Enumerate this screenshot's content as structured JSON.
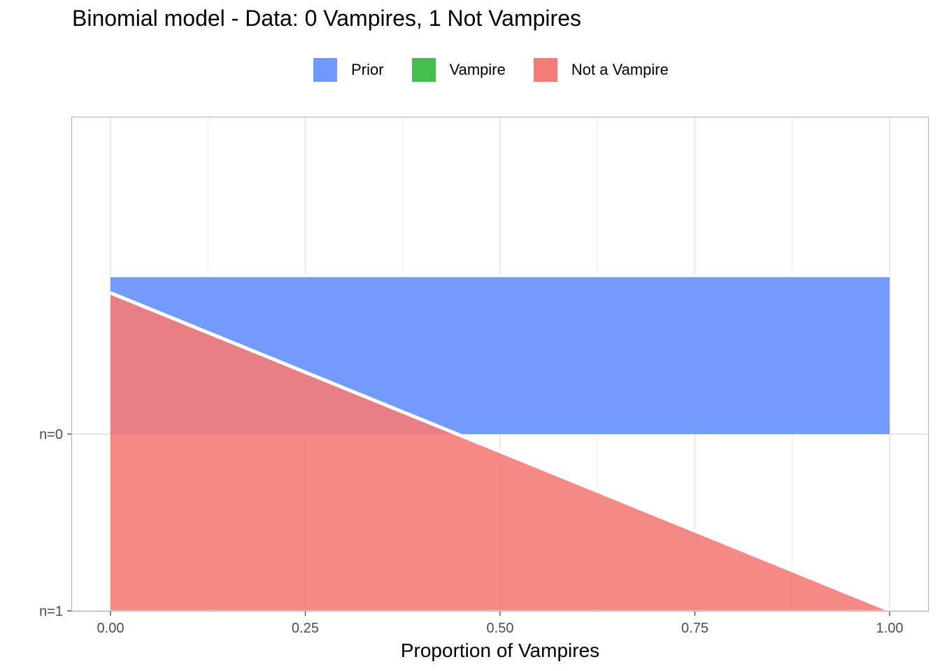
{
  "chart_data": {
    "type": "area",
    "title": "Binomial model - Data: 0 Vampires, 1 Not Vampires",
    "xlabel": "Proportion of Vampires",
    "ylabel": "",
    "xlim": [
      0,
      1
    ],
    "x_ticks": [
      "0.00",
      "0.25",
      "0.50",
      "0.75",
      "1.00"
    ],
    "y_ticks": [
      "n=0",
      "n=1"
    ],
    "grid": true,
    "legend_position": "top",
    "legend": [
      {
        "name": "Prior",
        "color": "#7099FF"
      },
      {
        "name": "Vampire",
        "color": "#45BE4F"
      },
      {
        "name": "Not a Vampire",
        "color": "#F47C78"
      }
    ],
    "ridges": [
      {
        "row": "n=0",
        "series": "Prior",
        "x": [
          0,
          1
        ],
        "density": [
          1,
          1
        ]
      },
      {
        "row": "n=1",
        "series": "Not a Vampire",
        "x": [
          0,
          1
        ],
        "density": [
          2,
          0
        ]
      }
    ],
    "density_scale_max": 2
  },
  "colors": {
    "prior": "#7099FF",
    "vampire": "#45BE4F",
    "not_vampire": "#F47C78",
    "grid_major": "#d9d9d9",
    "grid_minor": "#ececec",
    "panel_border": "#b3b3b3"
  }
}
